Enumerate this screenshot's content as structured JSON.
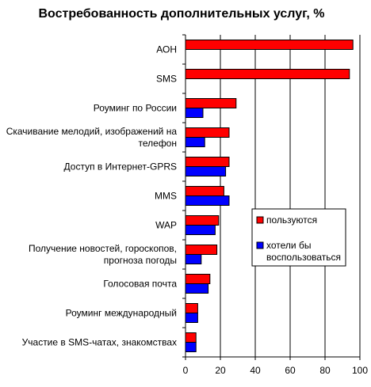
{
  "chart_data": {
    "type": "bar",
    "orientation": "horizontal",
    "title": "Востребованность дополнительных услуг, %",
    "xlabel": "",
    "ylabel": "",
    "categories": [
      [
        "АОН"
      ],
      [
        "SMS"
      ],
      [
        "Роуминг по России"
      ],
      [
        "Скачивание мелодий, изображений на",
        "телефон"
      ],
      [
        "Доступ в Интернет-GPRS"
      ],
      [
        "MMS"
      ],
      [
        "WAP"
      ],
      [
        "Получение новостей, гороскопов,",
        "прогноза погоды"
      ],
      [
        "Голосовая почта"
      ],
      [
        "Роуминг международный"
      ],
      [
        "Участие в SMS-чатах, знакомствах"
      ]
    ],
    "series": [
      {
        "name": "пользуются",
        "color": "#ff0000",
        "values": [
          96,
          94,
          29,
          25,
          25,
          22,
          19,
          18,
          14,
          7,
          6
        ]
      },
      {
        "name": "хотели бы воспользоваться",
        "name_lines": [
          "хотели бы",
          "воспользоваться"
        ],
        "color": "#0000ff",
        "values": [
          0,
          0,
          10,
          11,
          23,
          25,
          17,
          9,
          13,
          7,
          6
        ]
      }
    ],
    "xlim": [
      0,
      100
    ],
    "xticks": [
      "0",
      "20",
      "40",
      "60",
      "80",
      "100"
    ],
    "grid": true,
    "legend_position": "right"
  }
}
